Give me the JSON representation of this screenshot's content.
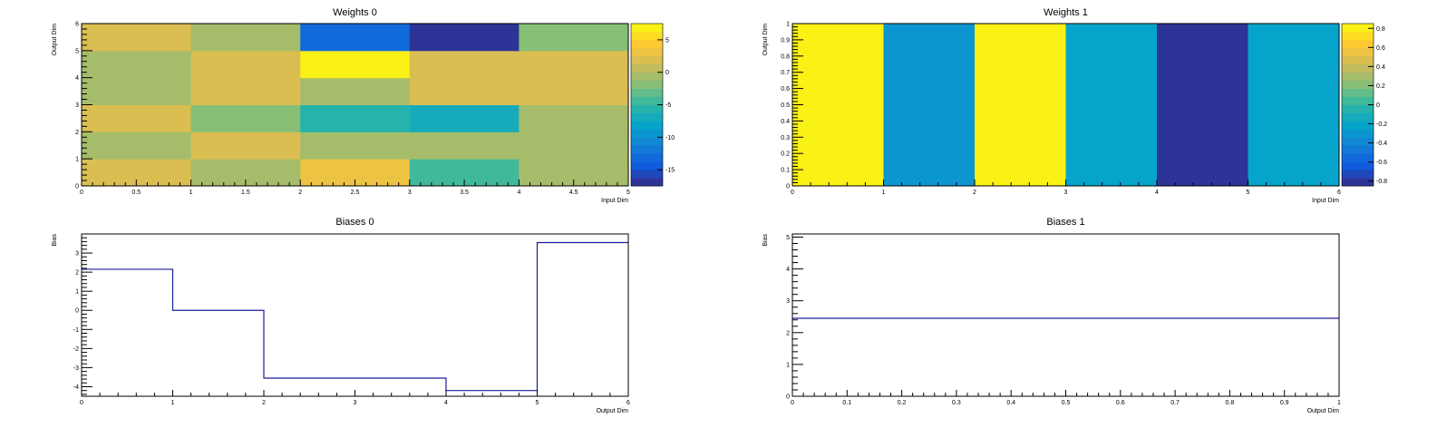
{
  "chart_data": [
    {
      "id": "weights0",
      "type": "heatmap",
      "title": "Weights 0",
      "xlabel": "Input Dim",
      "ylabel": "Output Dim",
      "xlim": [
        0,
        5
      ],
      "ylim": [
        0,
        6
      ],
      "x_ticks": [
        "0",
        "0.5",
        "1",
        "1.5",
        "2",
        "2.5",
        "3",
        "3.5",
        "4",
        "4.5",
        "5"
      ],
      "y_ticks": [
        "0",
        "1",
        "2",
        "3",
        "4",
        "5",
        "6"
      ],
      "colorbar": {
        "range": [
          -17.5,
          7.5
        ],
        "ticks": [
          "5",
          "0",
          "-5",
          "-10",
          "-15"
        ]
      },
      "values": [
        [
          1.5,
          -1.0,
          3.0,
          -4.0,
          -1.0
        ],
        [
          -1.0,
          2.0,
          -1.0,
          -1.0,
          -1.0
        ],
        [
          2.0,
          -1.5,
          -6.0,
          -7.0,
          -1.0
        ],
        [
          -1.0,
          2.0,
          -1.0,
          1.5,
          1.5
        ],
        [
          -1.0,
          2.0,
          7.5,
          1.5,
          1.5
        ],
        [
          1.5,
          -1.0,
          -13.0,
          -17.5,
          -1.5
        ]
      ]
    },
    {
      "id": "weights1",
      "type": "heatmap",
      "title": "Weights 1",
      "xlabel": "Input Dim",
      "ylabel": "Output Dim",
      "xlim": [
        0,
        6
      ],
      "ylim": [
        0,
        1
      ],
      "x_ticks": [
        "0",
        "1",
        "2",
        "3",
        "4",
        "5",
        "6"
      ],
      "y_ticks": [
        "0",
        "0.1",
        "0.2",
        "0.3",
        "0.4",
        "0.5",
        "0.6",
        "0.7",
        "0.8",
        "0.9",
        "1"
      ],
      "colorbar": {
        "range": [
          -0.85,
          0.85
        ],
        "ticks": [
          "0.8",
          "0.6",
          "0.4",
          "0.2",
          "0",
          "-0.2",
          "-0.4",
          "-0.6",
          "-0.8"
        ]
      },
      "values": [
        [
          0.85,
          -0.3,
          0.85,
          -0.2,
          -0.85,
          -0.2
        ]
      ]
    },
    {
      "id": "biases0",
      "type": "line",
      "step": true,
      "title": "Biases 0",
      "xlabel": "Output Dim",
      "ylabel": "Bias",
      "xlim": [
        0,
        6
      ],
      "ylim": [
        -4.5,
        4
      ],
      "x_ticks": [
        "0",
        "1",
        "2",
        "3",
        "4",
        "5",
        "6"
      ],
      "y_ticks": [
        "-4",
        "-3",
        "-2",
        "-1",
        "0",
        "1",
        "2",
        "3"
      ],
      "x": [
        0,
        1,
        2,
        3,
        4,
        5
      ],
      "values": [
        2.15,
        0.0,
        -3.55,
        -3.55,
        -4.2,
        3.55
      ]
    },
    {
      "id": "biases1",
      "type": "line",
      "step": true,
      "title": "Biases 1",
      "xlabel": "Output Dim",
      "ylabel": "Bias",
      "xlim": [
        0,
        1
      ],
      "ylim": [
        0,
        5.1
      ],
      "x_ticks": [
        "0",
        "0.1",
        "0.2",
        "0.3",
        "0.4",
        "0.5",
        "0.6",
        "0.7",
        "0.8",
        "0.9",
        "1"
      ],
      "y_ticks": [
        "0",
        "1",
        "2",
        "3",
        "4",
        "5"
      ],
      "x": [
        0
      ],
      "values": [
        2.45
      ]
    }
  ]
}
